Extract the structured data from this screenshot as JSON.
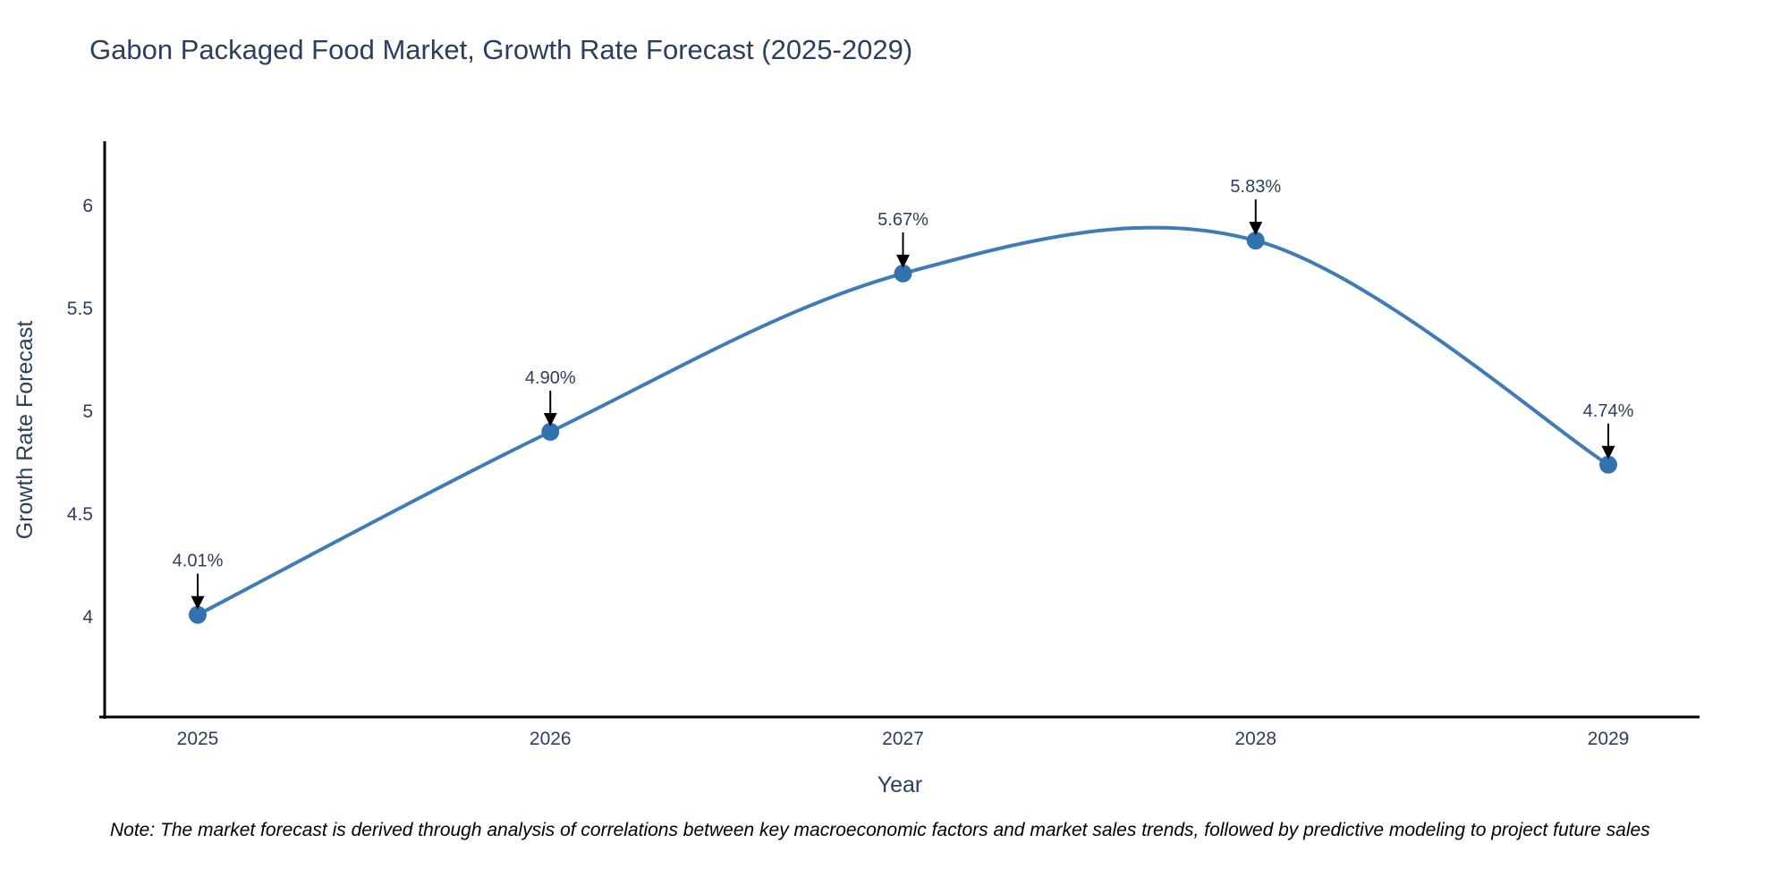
{
  "title": "Gabon Packaged Food Market, Growth Rate Forecast (2025-2029)",
  "note": "Note: The market forecast is derived through analysis of correlations between key macroeconomic factors and market sales trends, followed by predictive modeling to project future sales",
  "chart_data": {
    "type": "line",
    "x": [
      2025,
      2026,
      2027,
      2028,
      2029
    ],
    "xticks": [
      "2025",
      "2026",
      "2027",
      "2028",
      "2029"
    ],
    "series": [
      {
        "name": "Growth Rate Forecast",
        "values": [
          4.01,
          4.9,
          5.67,
          5.83,
          4.74
        ]
      }
    ],
    "point_labels": [
      "4.01%",
      "4.90%",
      "5.67%",
      "5.83%",
      "4.74%"
    ],
    "title": "Gabon Packaged Food Market, Growth Rate Forecast (2025-2029)",
    "xlabel": "Year",
    "ylabel": "Growth Rate Forecast",
    "yticks": [
      4,
      4.5,
      5,
      5.5,
      6
    ],
    "ylim": [
      3.51,
      6.31
    ],
    "grid": false,
    "legend_position": "none",
    "line_style": "spline",
    "annotations": "value labels with downward arrows above each point",
    "colors": {
      "line": "#3f7cb6",
      "marker": "#3273af",
      "axis": "#000000",
      "tick_text": "#2a3f5f",
      "label_text": "#2a3f5f",
      "title_text": "#2a3f5f",
      "arrow": "#000000",
      "background": "#ffffff"
    }
  }
}
